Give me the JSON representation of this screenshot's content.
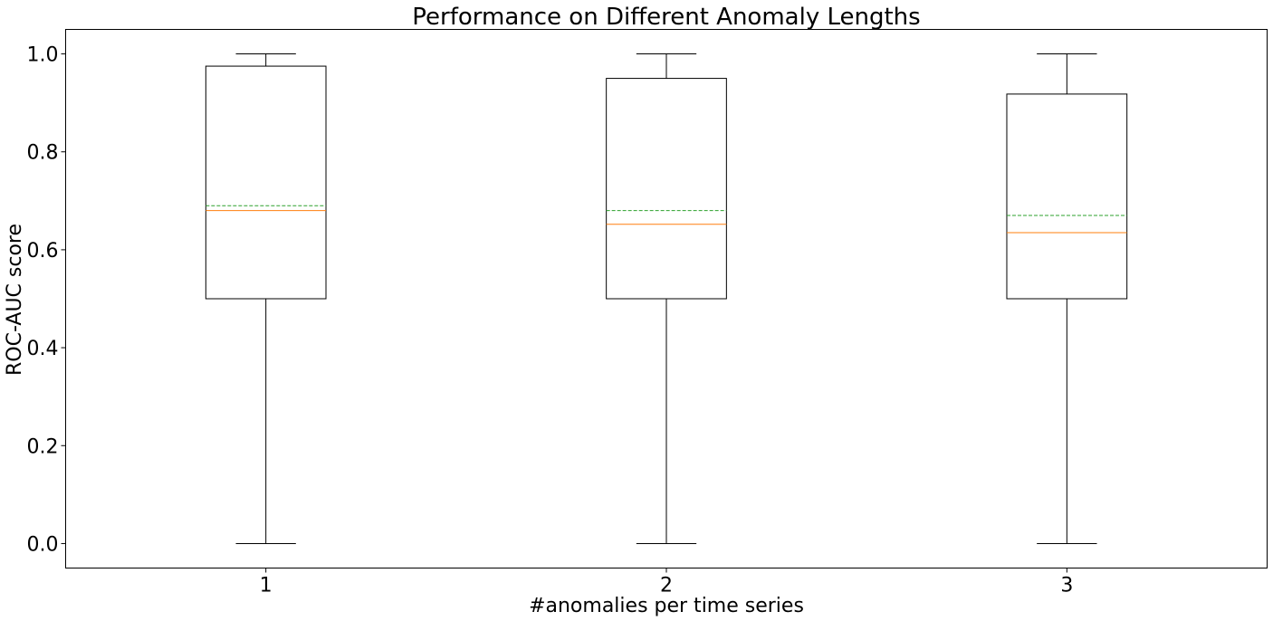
{
  "chart_data": {
    "type": "box",
    "title": "Performance on Different Anomaly Lengths",
    "xlabel": "#anomalies per time series",
    "ylabel": "ROC-AUC score",
    "ylim": [
      -0.05,
      1.05
    ],
    "yticks": [
      0.0,
      0.2,
      0.4,
      0.6,
      0.8,
      1.0
    ],
    "ytick_labels": [
      "0.0",
      "0.2",
      "0.4",
      "0.6",
      "0.8",
      "1.0"
    ],
    "categories": [
      "1",
      "2",
      "3"
    ],
    "boxes": [
      {
        "category": "1",
        "whisker_low": 0.0,
        "q1": 0.5,
        "median": 0.68,
        "mean": 0.69,
        "q3": 0.975,
        "whisker_high": 1.0
      },
      {
        "category": "2",
        "whisker_low": 0.0,
        "q1": 0.5,
        "median": 0.652,
        "mean": 0.68,
        "q3": 0.95,
        "whisker_high": 1.0
      },
      {
        "category": "3",
        "whisker_low": 0.0,
        "q1": 0.5,
        "median": 0.635,
        "mean": 0.67,
        "q3": 0.918,
        "whisker_high": 1.0
      }
    ],
    "median_color": "#ff7f0e",
    "mean_color": "#2ca02c",
    "box_color": "#000000",
    "grid": false,
    "show_means": true,
    "mean_line_style": "dashed"
  }
}
